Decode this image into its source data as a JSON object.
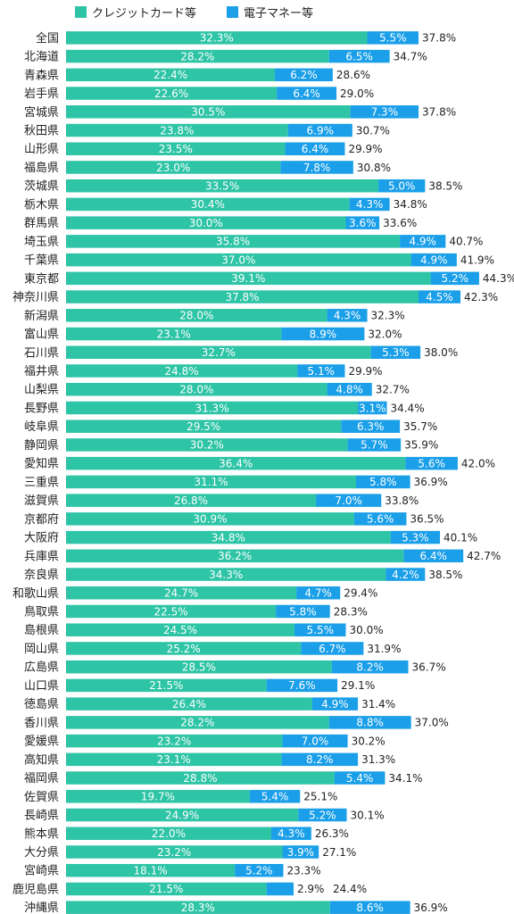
{
  "chart_data": {
    "type": "bar",
    "orientation": "horizontal",
    "stacked": true,
    "legend_position": "top-left",
    "colors": {
      "credit": "#2ec4a6",
      "emoney": "#1a9fe8"
    },
    "categories": [
      "全国",
      "北海道",
      "青森県",
      "岩手県",
      "宮城県",
      "秋田県",
      "山形県",
      "福島県",
      "茨城県",
      "栃木県",
      "群馬県",
      "埼玉県",
      "千葉県",
      "東京都",
      "神奈川県",
      "新潟県",
      "富山県",
      "石川県",
      "福井県",
      "山梨県",
      "長野県",
      "岐阜県",
      "静岡県",
      "愛知県",
      "三重県",
      "滋賀県",
      "京都府",
      "大阪府",
      "兵庫県",
      "奈良県",
      "和歌山県",
      "鳥取県",
      "島根県",
      "岡山県",
      "広島県",
      "山口県",
      "徳島県",
      "香川県",
      "愛媛県",
      "高知県",
      "福岡県",
      "佐賀県",
      "長崎県",
      "熊本県",
      "大分県",
      "宮崎県",
      "鹿児島県",
      "沖縄県"
    ],
    "series": [
      {
        "name": "クレジットカード等",
        "values": [
          32.3,
          28.2,
          22.4,
          22.6,
          30.5,
          23.8,
          23.5,
          23.0,
          33.5,
          30.4,
          30.0,
          35.8,
          37.0,
          39.1,
          37.8,
          28.0,
          23.1,
          32.7,
          24.8,
          28.0,
          31.3,
          29.5,
          30.2,
          36.4,
          31.1,
          26.8,
          30.9,
          34.8,
          36.2,
          34.3,
          24.7,
          22.5,
          24.5,
          25.2,
          28.5,
          21.5,
          26.4,
          28.2,
          23.2,
          23.1,
          28.8,
          19.7,
          24.9,
          22.0,
          23.2,
          18.1,
          21.5,
          28.3
        ]
      },
      {
        "name": "電子マネー等",
        "values": [
          5.5,
          6.5,
          6.2,
          6.4,
          7.3,
          6.9,
          6.4,
          7.8,
          5.0,
          4.3,
          3.6,
          4.9,
          4.9,
          5.2,
          4.5,
          4.3,
          8.9,
          5.3,
          5.1,
          4.8,
          3.1,
          6.3,
          5.7,
          5.6,
          5.8,
          7.0,
          5.6,
          5.3,
          6.4,
          4.2,
          4.7,
          5.8,
          5.5,
          6.7,
          8.2,
          7.6,
          4.9,
          8.8,
          7.0,
          8.2,
          5.4,
          5.4,
          5.2,
          4.3,
          3.9,
          5.2,
          2.9,
          8.6
        ]
      }
    ],
    "totals": [
      "37.8%",
      "34.7%",
      "28.6%",
      "29.0%",
      "37.8%",
      "30.7%",
      "29.9%",
      "30.8%",
      "38.5%",
      "34.8%",
      "33.6%",
      "40.7%",
      "41.9%",
      "44.3%",
      "42.3%",
      "32.3%",
      "32.0%",
      "38.0%",
      "29.9%",
      "32.7%",
      "34.4%",
      "35.7%",
      "35.9%",
      "42.0%",
      "36.9%",
      "33.8%",
      "36.5%",
      "40.1%",
      "42.7%",
      "38.5%",
      "29.4%",
      "28.3%",
      "30.0%",
      "31.9%",
      "36.7%",
      "29.1%",
      "31.4%",
      "37.0%",
      "30.2%",
      "31.3%",
      "34.1%",
      "25.1%",
      "30.1%",
      "26.3%",
      "27.1%",
      "23.3%",
      "24.4%",
      "36.9%"
    ]
  }
}
